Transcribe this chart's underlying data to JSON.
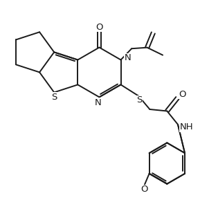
{
  "bg_color": "#ffffff",
  "line_color": "#1a1a1a",
  "lw": 1.4,
  "figsize": [
    3.15,
    3.15
  ],
  "dpi": 100,
  "xlim": [
    0,
    10
  ],
  "ylim": [
    0,
    10
  ]
}
